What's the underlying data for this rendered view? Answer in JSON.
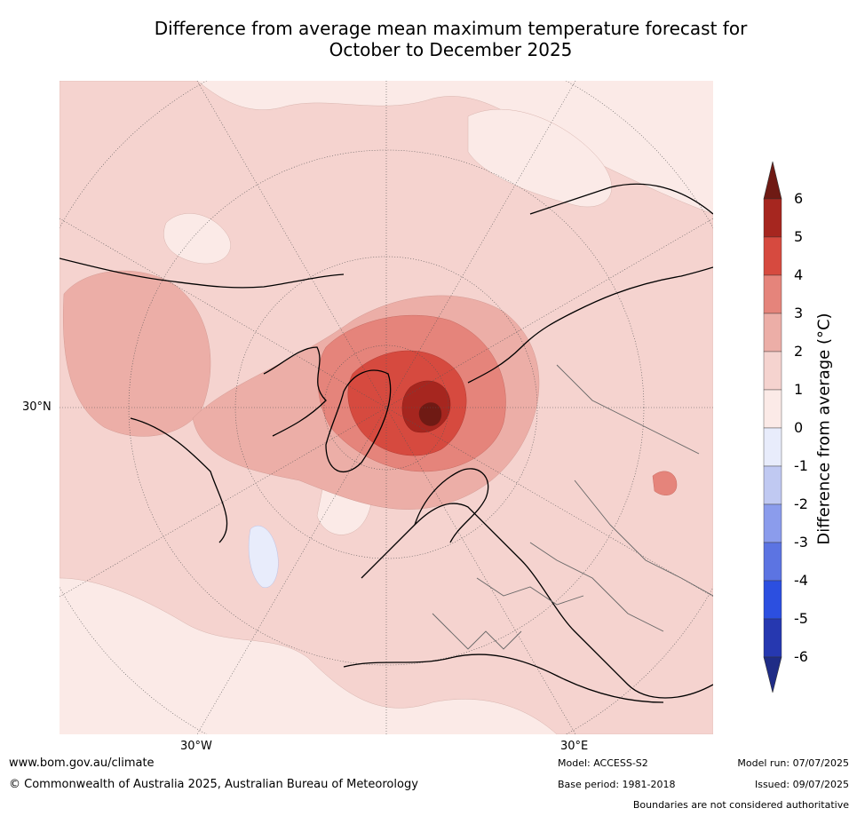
{
  "title_line1": "Difference from average mean maximum temperature forecast for",
  "title_line2": "October to December 2025",
  "map": {
    "projection": "north-polar-stereographic",
    "lat_label": "30°N",
    "lon_labels": [
      "30°W",
      "30°E"
    ],
    "region_note": "Northern hemisphere: Arctic, North Atlantic, Europe, Greenland, northern Asia",
    "colors": {
      "lt_0_-1": "#e8ecfb",
      "0_1": "#fbeae7",
      "1_2": "#f5d3cf",
      "2_3": "#ecaea7",
      "3_4": "#e5847b",
      "4_5": "#d64a3f",
      "5_6": "#a6261f",
      "gt_6": "#6f1a14"
    }
  },
  "colorbar": {
    "label": "Difference from average (°C)",
    "ticks": [
      "6",
      "5",
      "4",
      "3",
      "2",
      "1",
      "0",
      "-1",
      "-2",
      "-3",
      "-4",
      "-5",
      "-6"
    ],
    "colors_top_to_bottom": [
      "#a6261f",
      "#d64a3f",
      "#e5847b",
      "#ecaea7",
      "#f5d3cf",
      "#fbeae7",
      "#e8ecfb",
      "#c0c9f2",
      "#8b9cec",
      "#5c74e2",
      "#2c4fe0",
      "#2638b0"
    ],
    "extend_top_color": "#6f1a14",
    "extend_bottom_color": "#1f2c86"
  },
  "footer": {
    "website": "www.bom.gov.au/climate",
    "copyright": "© Commonwealth of Australia 2025, Australian Bureau of Meteorology",
    "model": "Model: ACCESS-S2",
    "base_period": "Base period: 1981-2018",
    "model_run": "Model run: 07/07/2025",
    "issued": "Issued: 09/07/2025",
    "boundaries_note": "Boundaries are not considered authoritative"
  }
}
